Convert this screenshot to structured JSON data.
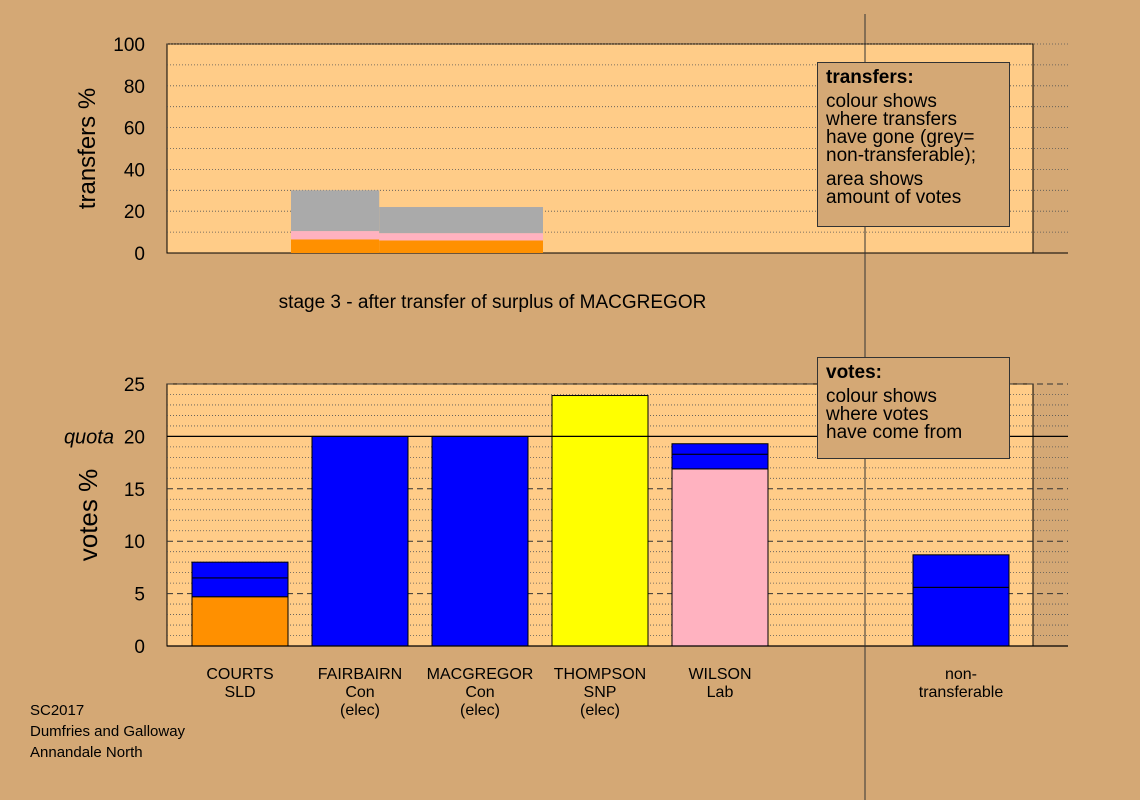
{
  "chart_data": [
    {
      "type": "bar",
      "title": "",
      "ylabel": "transfers %",
      "ylim": [
        0,
        100
      ],
      "yticks": [
        0,
        20,
        40,
        60,
        80,
        100
      ],
      "grid": true,
      "note": "stacked transfer areas (bottom to top: orange, pink, grey)",
      "segments": [
        {
          "from": 1,
          "to": 2.16,
          "layers": [
            {
              "color": "#ff9000",
              "value": 6.5
            },
            {
              "color": "#ffb2c0",
              "value": 4
            },
            {
              "color": "#aaaaaa",
              "value": 19.5
            }
          ]
        },
        {
          "from": 2.16,
          "to": 3.1,
          "layers": [
            {
              "color": "#ff9000",
              "value": 6
            },
            {
              "color": "#ffb2c0",
              "value": 3.5
            },
            {
              "color": "#aaaaaa",
              "value": 12.5
            }
          ]
        }
      ]
    },
    {
      "type": "bar",
      "title": "",
      "ylabel": "votes %",
      "ylim": [
        0,
        25
      ],
      "yticks": [
        0,
        5,
        10,
        15,
        20,
        25
      ],
      "quota": 20,
      "quota_label": "quota",
      "grid": true,
      "legend_placement": "top-right",
      "categories": [
        {
          "lines": [
            "COURTS",
            "SLD"
          ],
          "segments": [
            {
              "color": "#ff9000",
              "value": 4.7
            },
            {
              "color": "#0000ff",
              "value": 1.8
            },
            {
              "color": "#0000ff",
              "value": 1.5
            }
          ]
        },
        {
          "lines": [
            "FAIRBAIRN",
            "Con",
            "(elec)"
          ],
          "segments": [
            {
              "color": "#0000ff",
              "value": 20
            }
          ]
        },
        {
          "lines": [
            "MACGREGOR",
            "Con",
            "(elec)"
          ],
          "segments": [
            {
              "color": "#0000ff",
              "value": 20
            }
          ]
        },
        {
          "lines": [
            "THOMPSON",
            "SNP",
            "(elec)"
          ],
          "segments": [
            {
              "color": "#ffff00",
              "value": 23.9
            }
          ]
        },
        {
          "lines": [
            "WILSON",
            "Lab"
          ],
          "segments": [
            {
              "color": "#ffb2c0",
              "value": 16.9
            },
            {
              "color": "#0000ff",
              "value": 1.4
            },
            {
              "color": "#0000ff",
              "value": 1.0
            }
          ]
        },
        {
          "lines": [
            "non-",
            "transferable"
          ],
          "segments": [
            {
              "color": "#0000ff",
              "value": 5.6
            },
            {
              "color": "#0000ff",
              "value": 3.1
            }
          ],
          "separate": true
        }
      ]
    }
  ],
  "legend_transfers": {
    "title": "transfers:",
    "lines_a": [
      "colour shows",
      "where transfers",
      "have gone (grey=",
      "non-transferable);"
    ],
    "lines_b": [
      "area shows",
      "amount of votes"
    ]
  },
  "legend_votes": {
    "title": "votes:",
    "lines": [
      "colour shows",
      "where votes",
      "have come from"
    ]
  },
  "stage_label": "stage 3 - after transfer of surplus of MACGREGOR",
  "footer": [
    "SC2017",
    "Dumfries and Galloway",
    "Annandale North"
  ],
  "colors": {
    "background": "#d4a875",
    "plot_fill": "#ffcc88",
    "bar_stroke": "#000000"
  }
}
